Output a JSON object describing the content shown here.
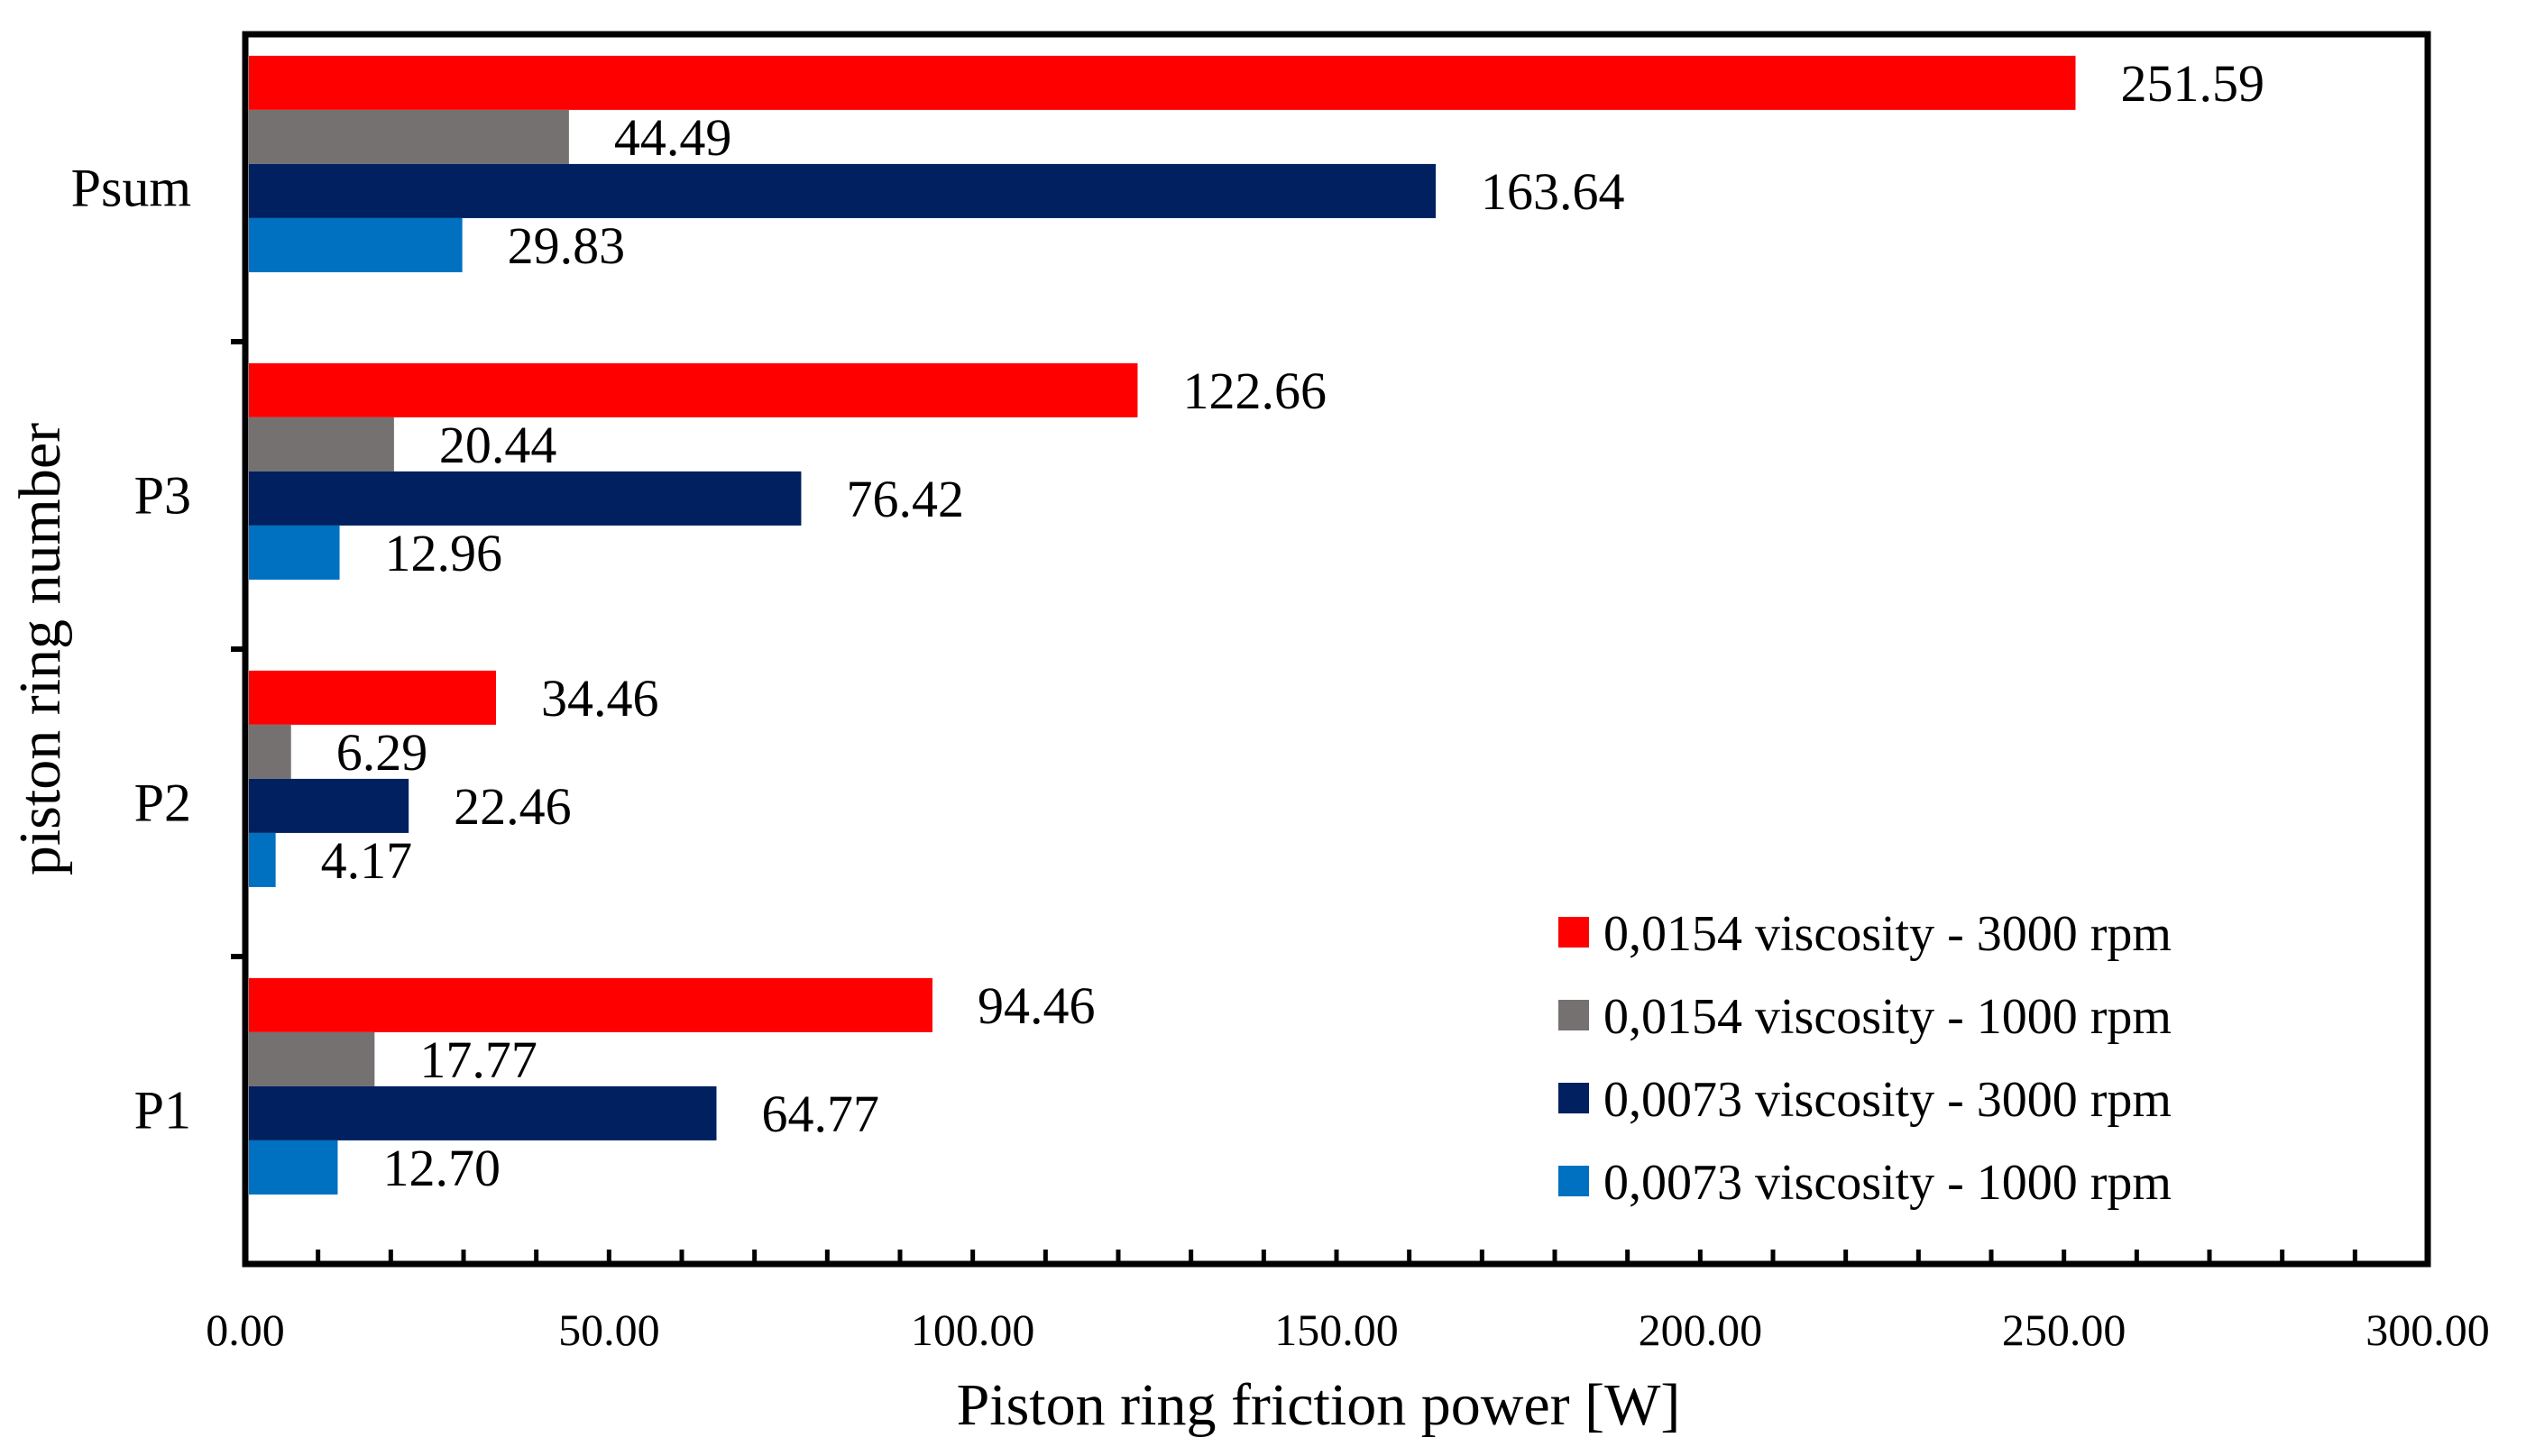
{
  "chart_data": {
    "type": "bar",
    "orientation": "horizontal",
    "title": "",
    "xlabel": "Piston ring friction power [W]",
    "ylabel": "piston ring number",
    "xlim": [
      0,
      300
    ],
    "x_ticks": [
      "0.00",
      "50.00",
      "100.00",
      "150.00",
      "200.00",
      "250.00",
      "300.00"
    ],
    "x_tick_values": [
      0,
      50,
      100,
      150,
      200,
      250,
      300
    ],
    "categories": [
      "P1",
      "P2",
      "P3",
      "Psum"
    ],
    "series": [
      {
        "name": "0,0154 viscosity - 3000 rpm",
        "color": "#ff0000",
        "values": [
          94.46,
          34.46,
          122.66,
          251.59
        ],
        "labels": [
          "94.46",
          "34.46",
          "122.66",
          "251.59"
        ]
      },
      {
        "name": "0,0154 viscosity - 1000 rpm",
        "color": "#767171",
        "values": [
          17.77,
          6.29,
          20.44,
          44.49
        ],
        "labels": [
          "17.77",
          "6.29",
          "20.44",
          "44.49"
        ]
      },
      {
        "name": "0,0073 viscosity - 3000 rpm",
        "color": "#002060",
        "values": [
          64.77,
          22.46,
          76.42,
          163.64
        ],
        "labels": [
          "64.77",
          "22.46",
          "76.42",
          "163.64"
        ]
      },
      {
        "name": "0,0073 viscosity - 1000 rpm",
        "color": "#0070c0",
        "values": [
          12.7,
          4.17,
          12.96,
          29.83
        ],
        "labels": [
          "12.70",
          "4.17",
          "12.96",
          "29.83"
        ]
      }
    ],
    "legend_position": "bottom-right",
    "grid": false
  }
}
